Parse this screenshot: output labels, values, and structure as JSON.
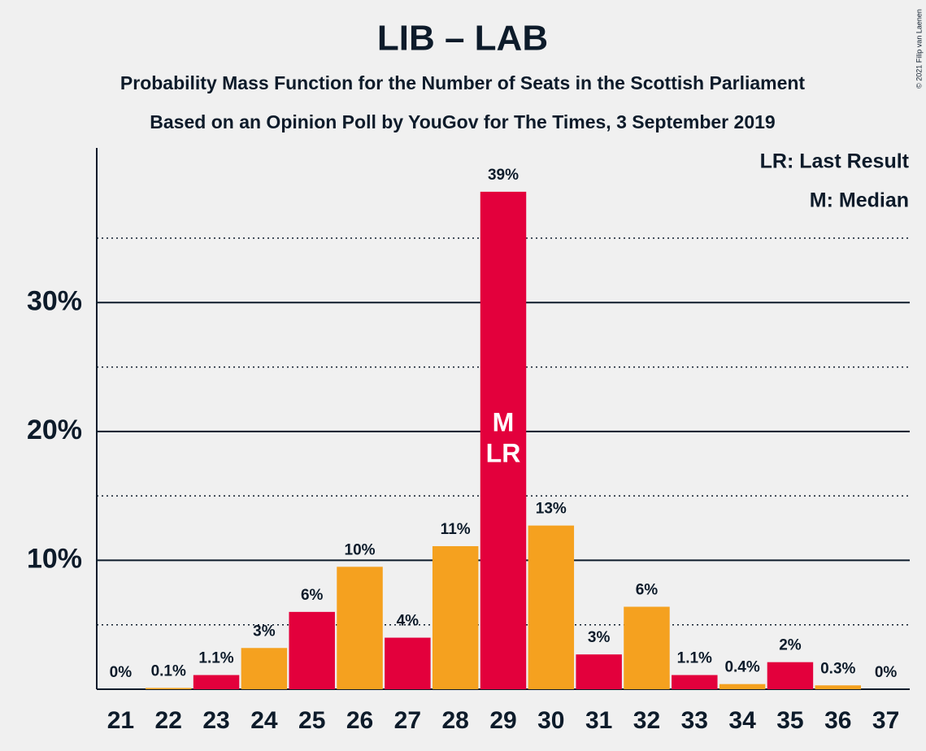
{
  "chart_data": {
    "type": "bar",
    "title": "LIB – LAB",
    "subtitle": "Probability Mass Function for the Number of Seats in the Scottish Parliament",
    "subtitle2": "Based on an Opinion Poll by YouGov for The Times, 3 September 2019",
    "copyright": "© 2021 Filip van Laenen",
    "legend": [
      "LR: Last Result",
      "M: Median"
    ],
    "categories": [
      "21",
      "22",
      "23",
      "24",
      "25",
      "26",
      "27",
      "28",
      "29",
      "30",
      "31",
      "32",
      "33",
      "34",
      "35",
      "36",
      "37"
    ],
    "values": [
      0,
      0.1,
      1.1,
      3.2,
      6.0,
      9.5,
      4.0,
      11.1,
      38.6,
      12.7,
      2.7,
      6.4,
      1.1,
      0.4,
      2.1,
      0.3,
      0
    ],
    "value_labels": [
      "0%",
      "0.1%",
      "1.1%",
      "3%",
      "6%",
      "10%",
      "4%",
      "11%",
      "39%",
      "13%",
      "3%",
      "6%",
      "1.1%",
      "0.4%",
      "2%",
      "0.3%",
      "0%"
    ],
    "colors": [
      "#e3003c",
      "#f5a11f",
      "#e3003c",
      "#f5a11f",
      "#e3003c",
      "#f5a11f",
      "#e3003c",
      "#f5a11f",
      "#e3003c",
      "#f5a11f",
      "#e3003c",
      "#f5a11f",
      "#e3003c",
      "#f5a11f",
      "#e3003c",
      "#f5a11f",
      "#e3003c"
    ],
    "median": {
      "category": "29",
      "label": "M"
    },
    "last_result": {
      "category": "29",
      "label": "LR"
    },
    "ylim": [
      0,
      42
    ],
    "yticks": [
      {
        "value": 10,
        "label": "10%"
      },
      {
        "value": 20,
        "label": "20%"
      },
      {
        "value": 30,
        "label": "30%"
      }
    ],
    "minor_yticks": [
      5,
      15,
      25,
      35
    ],
    "grid": true
  }
}
